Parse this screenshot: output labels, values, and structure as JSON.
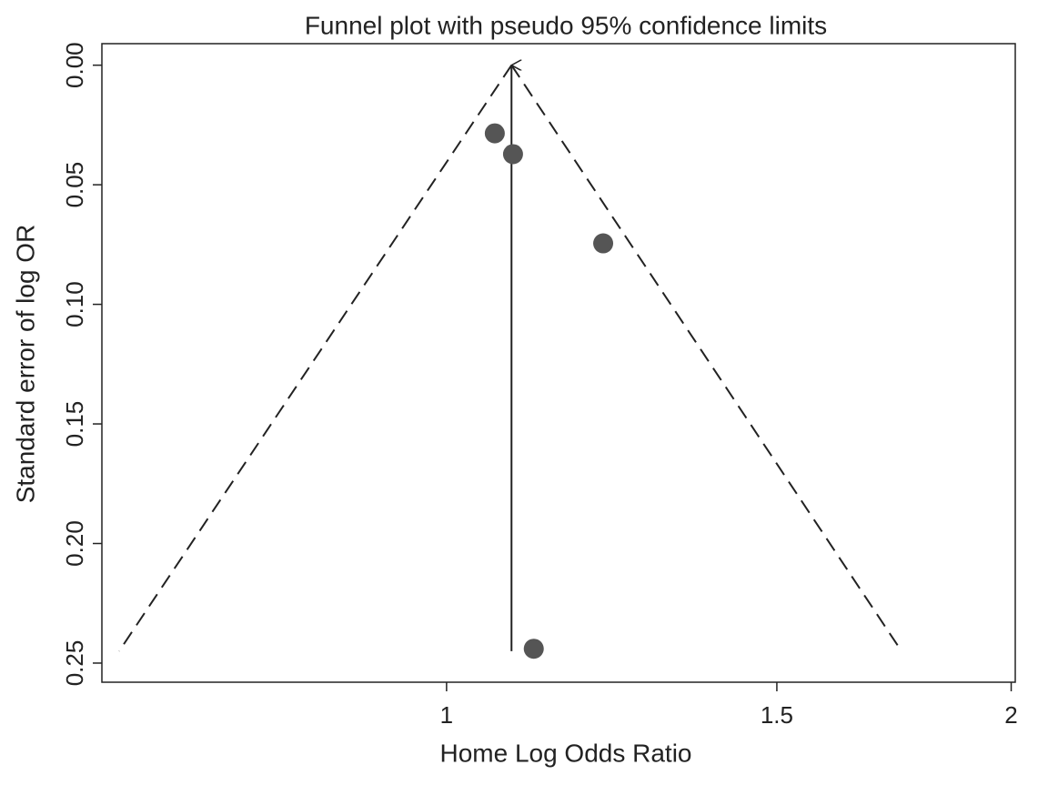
{
  "chart_data": {
    "type": "scatter",
    "title": "Funnel plot with pseudo 95% confidence limits",
    "x_label": "Home Log Odds Ratio",
    "y_label": "Standard error of log OR",
    "x": [
      1.061,
      1.085,
      1.212,
      1.113
    ],
    "y": [
      0.0285,
      0.0372,
      0.0745,
      0.244
    ],
    "color": "#555555",
    "xlim": [
      0.655,
      2.01
    ],
    "x_log": true,
    "xticks": [
      1,
      1.5,
      2
    ],
    "ylim": [
      -0.009,
      0.258
    ],
    "y_inverted": true,
    "yticks": [
      {
        "value": 0,
        "label": "0.00"
      },
      {
        "value": 0.05,
        "label": "0.05"
      },
      {
        "value": 0.1,
        "label": "0.10"
      },
      {
        "value": 0.15,
        "label": "0.15"
      },
      {
        "value": 0.2,
        "label": "0.20"
      },
      {
        "value": 0.25,
        "label": "0.25"
      }
    ],
    "pooled_line": {
      "x": [
        1.083,
        1.083
      ],
      "y": [
        0.245,
        0
      ]
    },
    "limit_lines": [
      {
        "x": [
          1.083,
          0.669
        ],
        "y": [
          0,
          0.245
        ]
      },
      {
        "x": [
          1.083,
          1.748
        ],
        "y": [
          0,
          0.245
        ]
      }
    ]
  }
}
